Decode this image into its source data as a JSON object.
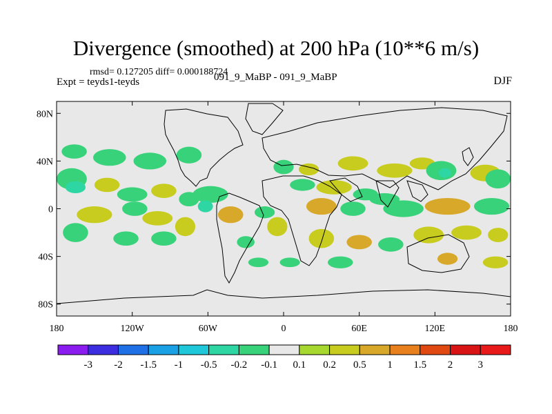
{
  "chart_data": {
    "type": "heatmap",
    "title": "Divergence (smoothed) at 200 hPa (10**6 m/s)",
    "stats_line": "rmsd= 0.127205 diff= 0.000188724",
    "expt_line": "Expt = teyds1-teyds",
    "case_line": "091_9_MaBP - 091_9_MaBP",
    "season": "DJF",
    "x_ticks": [
      "180",
      "120W",
      "60W",
      "0",
      "60E",
      "120E",
      "180"
    ],
    "x_tick_values": [
      -180,
      -120,
      -60,
      0,
      60,
      120,
      180
    ],
    "y_ticks": [
      "80N",
      "40N",
      "0",
      "40S",
      "80S"
    ],
    "y_tick_values": [
      80,
      40,
      0,
      -40,
      -80
    ],
    "xlim": [
      -180,
      180
    ],
    "ylim": [
      -90,
      90
    ],
    "colorbar": {
      "labels": [
        "-3",
        "-2",
        "-1.5",
        "-1",
        "-0.5",
        "-0.2",
        "-0.1",
        "0.1",
        "0.2",
        "0.5",
        "1",
        "1.5",
        "2",
        "3"
      ],
      "colors": [
        "#8a1cf0",
        "#3c2ee0",
        "#1f6fe6",
        "#1aa0e4",
        "#1ec8d8",
        "#2ed6a4",
        "#38d27a",
        "#e8e8e8",
        "#a6d830",
        "#c8cc1e",
        "#d8a82a",
        "#e8801e",
        "#e04a12",
        "#d81414",
        "#e81a1a"
      ]
    },
    "field_blobs": [
      {
        "lon": -166,
        "lat": 48,
        "rx": 10,
        "ry": 6,
        "value": -0.2
      },
      {
        "lon": -138,
        "lat": 43,
        "rx": 13,
        "ry": 7,
        "value": -0.2
      },
      {
        "lon": -106,
        "lat": 40,
        "rx": 13,
        "ry": 7,
        "value": -0.2
      },
      {
        "lon": -75,
        "lat": 45,
        "rx": 10,
        "ry": 7,
        "value": -0.2
      },
      {
        "lon": -168,
        "lat": 25,
        "rx": 12,
        "ry": 9,
        "value": -0.2
      },
      {
        "lon": -165,
        "lat": 18,
        "rx": 8,
        "ry": 5,
        "value": -0.5
      },
      {
        "lon": -140,
        "lat": 20,
        "rx": 10,
        "ry": 6,
        "value": 0.2
      },
      {
        "lon": -120,
        "lat": 12,
        "rx": 12,
        "ry": 6,
        "value": -0.2
      },
      {
        "lon": -95,
        "lat": 15,
        "rx": 10,
        "ry": 6,
        "value": 0.2
      },
      {
        "lon": -75,
        "lat": 8,
        "rx": 8,
        "ry": 6,
        "value": -0.2
      },
      {
        "lon": -58,
        "lat": 12,
        "rx": 14,
        "ry": 7,
        "value": -0.2
      },
      {
        "lon": -62,
        "lat": 2,
        "rx": 6,
        "ry": 5,
        "value": -0.5
      },
      {
        "lon": -42,
        "lat": -5,
        "rx": 10,
        "ry": 7,
        "value": 0.5
      },
      {
        "lon": -150,
        "lat": -5,
        "rx": 14,
        "ry": 7,
        "value": 0.2
      },
      {
        "lon": -118,
        "lat": 0,
        "rx": 10,
        "ry": 6,
        "value": -0.2
      },
      {
        "lon": -100,
        "lat": -8,
        "rx": 12,
        "ry": 6,
        "value": 0.2
      },
      {
        "lon": -78,
        "lat": -15,
        "rx": 8,
        "ry": 8,
        "value": 0.2
      },
      {
        "lon": -165,
        "lat": -20,
        "rx": 10,
        "ry": 8,
        "value": -0.2
      },
      {
        "lon": -125,
        "lat": -25,
        "rx": 10,
        "ry": 6,
        "value": -0.2
      },
      {
        "lon": -95,
        "lat": -25,
        "rx": 10,
        "ry": 6,
        "value": -0.2
      },
      {
        "lon": -15,
        "lat": -3,
        "rx": 8,
        "ry": 5,
        "value": -0.2
      },
      {
        "lon": -5,
        "lat": -15,
        "rx": 8,
        "ry": 8,
        "value": 0.2
      },
      {
        "lon": -30,
        "lat": -28,
        "rx": 7,
        "ry": 5,
        "value": -0.2
      },
      {
        "lon": 0,
        "lat": 35,
        "rx": 8,
        "ry": 6,
        "value": -0.2
      },
      {
        "lon": 20,
        "lat": 33,
        "rx": 8,
        "ry": 5,
        "value": 0.2
      },
      {
        "lon": 55,
        "lat": 38,
        "rx": 12,
        "ry": 6,
        "value": 0.2
      },
      {
        "lon": 88,
        "lat": 32,
        "rx": 14,
        "ry": 6,
        "value": 0.2
      },
      {
        "lon": 110,
        "lat": 38,
        "rx": 10,
        "ry": 5,
        "value": 0.2
      },
      {
        "lon": 125,
        "lat": 32,
        "rx": 12,
        "ry": 8,
        "value": -0.2
      },
      {
        "lon": 128,
        "lat": 30,
        "rx": 5,
        "ry": 4,
        "value": -0.5
      },
      {
        "lon": 160,
        "lat": 30,
        "rx": 12,
        "ry": 7,
        "value": 0.2
      },
      {
        "lon": 170,
        "lat": 25,
        "rx": 10,
        "ry": 8,
        "value": -0.2
      },
      {
        "lon": 15,
        "lat": 20,
        "rx": 10,
        "ry": 5,
        "value": -0.2
      },
      {
        "lon": 40,
        "lat": 18,
        "rx": 14,
        "ry": 6,
        "value": 0.2
      },
      {
        "lon": 65,
        "lat": 12,
        "rx": 10,
        "ry": 5,
        "value": -0.2
      },
      {
        "lon": 30,
        "lat": 2,
        "rx": 12,
        "ry": 7,
        "value": 0.5
      },
      {
        "lon": 55,
        "lat": 0,
        "rx": 10,
        "ry": 6,
        "value": -0.2
      },
      {
        "lon": 80,
        "lat": 8,
        "rx": 12,
        "ry": 5,
        "value": -0.2
      },
      {
        "lon": 95,
        "lat": 0,
        "rx": 16,
        "ry": 7,
        "value": -0.2
      },
      {
        "lon": 130,
        "lat": 2,
        "rx": 18,
        "ry": 7,
        "value": 0.5
      },
      {
        "lon": 165,
        "lat": 2,
        "rx": 14,
        "ry": 7,
        "value": -0.2
      },
      {
        "lon": 30,
        "lat": -25,
        "rx": 10,
        "ry": 8,
        "value": 0.2
      },
      {
        "lon": 60,
        "lat": -28,
        "rx": 10,
        "ry": 6,
        "value": 0.5
      },
      {
        "lon": 85,
        "lat": -30,
        "rx": 10,
        "ry": 6,
        "value": -0.2
      },
      {
        "lon": 115,
        "lat": -22,
        "rx": 12,
        "ry": 7,
        "value": 0.2
      },
      {
        "lon": 145,
        "lat": -20,
        "rx": 12,
        "ry": 6,
        "value": 0.2
      },
      {
        "lon": 170,
        "lat": -22,
        "rx": 8,
        "ry": 6,
        "value": 0.2
      },
      {
        "lon": 130,
        "lat": -42,
        "rx": 8,
        "ry": 5,
        "value": 0.5
      },
      {
        "lon": 45,
        "lat": -45,
        "rx": 10,
        "ry": 5,
        "value": -0.2
      },
      {
        "lon": 5,
        "lat": -45,
        "rx": 8,
        "ry": 4,
        "value": -0.2
      },
      {
        "lon": 168,
        "lat": -45,
        "rx": 10,
        "ry": 5,
        "value": 0.2
      },
      {
        "lon": -20,
        "lat": -45,
        "rx": 8,
        "ry": 4,
        "value": -0.2
      }
    ]
  }
}
